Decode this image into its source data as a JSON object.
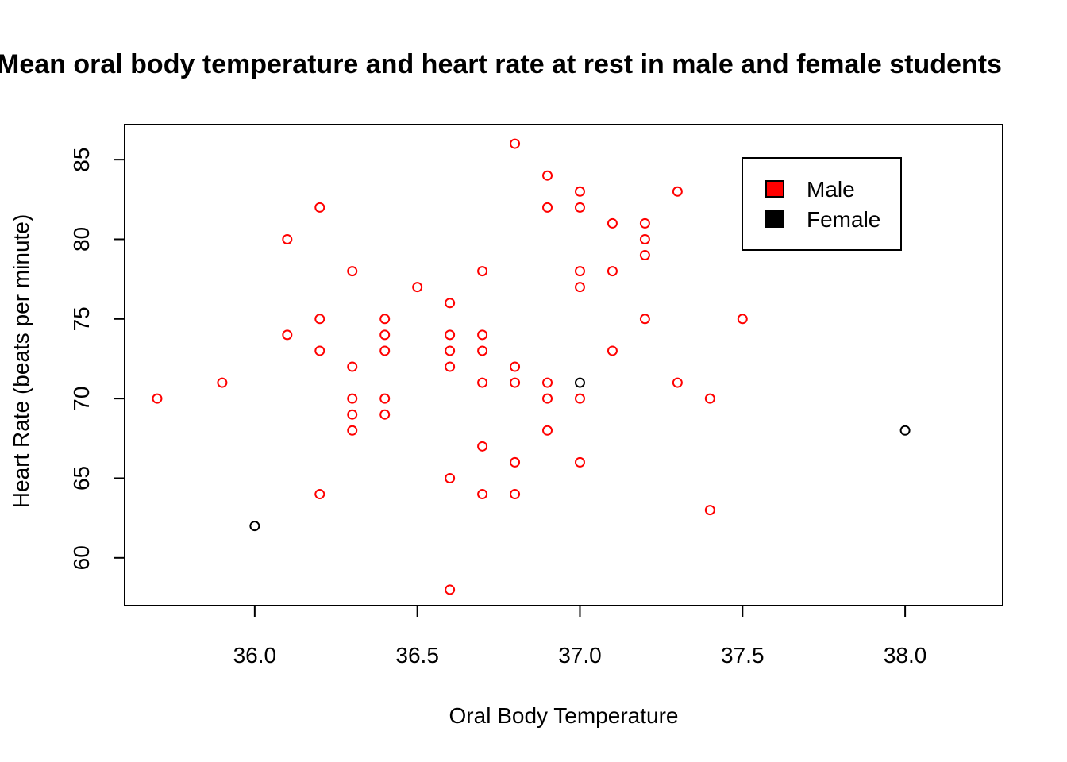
{
  "chart_data": {
    "type": "scatter",
    "title": "Mean oral body temperature  and heart rate at rest in male and female students",
    "xlabel": "Oral Body Temperature",
    "ylabel": "Heart Rate (beats per minute)",
    "xlim": [
      35.6,
      38.3
    ],
    "ylim": [
      57,
      87.2
    ],
    "x_ticks": [
      36.0,
      36.5,
      37.0,
      37.5,
      38.0
    ],
    "x_tick_labels": [
      "36.0",
      "36.5",
      "37.0",
      "37.5",
      "38.0"
    ],
    "y_ticks": [
      60,
      65,
      70,
      75,
      80,
      85
    ],
    "y_tick_labels": [
      "60",
      "65",
      "70",
      "75",
      "80",
      "85"
    ],
    "grid": false,
    "legend_position": "top-right",
    "series": [
      {
        "name": "Male",
        "color": "#ff0000",
        "points": [
          [
            35.7,
            70
          ],
          [
            35.9,
            71
          ],
          [
            36.1,
            80
          ],
          [
            36.1,
            74
          ],
          [
            36.2,
            82
          ],
          [
            36.2,
            75
          ],
          [
            36.2,
            73
          ],
          [
            36.2,
            64
          ],
          [
            36.3,
            78
          ],
          [
            36.3,
            72
          ],
          [
            36.3,
            70
          ],
          [
            36.3,
            69
          ],
          [
            36.3,
            68
          ],
          [
            36.4,
            75
          ],
          [
            36.4,
            74
          ],
          [
            36.4,
            73
          ],
          [
            36.4,
            70
          ],
          [
            36.4,
            69
          ],
          [
            36.5,
            77
          ],
          [
            36.6,
            76
          ],
          [
            36.6,
            74
          ],
          [
            36.6,
            73
          ],
          [
            36.6,
            72
          ],
          [
            36.6,
            65
          ],
          [
            36.6,
            58
          ],
          [
            36.7,
            78
          ],
          [
            36.7,
            74
          ],
          [
            36.7,
            73
          ],
          [
            36.7,
            71
          ],
          [
            36.7,
            67
          ],
          [
            36.7,
            64
          ],
          [
            36.8,
            86
          ],
          [
            36.8,
            72
          ],
          [
            36.8,
            71
          ],
          [
            36.8,
            66
          ],
          [
            36.8,
            64
          ],
          [
            36.9,
            84
          ],
          [
            36.9,
            82
          ],
          [
            36.9,
            71
          ],
          [
            36.9,
            70
          ],
          [
            36.9,
            68
          ],
          [
            37.0,
            83
          ],
          [
            37.0,
            82
          ],
          [
            37.0,
            78
          ],
          [
            37.0,
            77
          ],
          [
            37.0,
            70
          ],
          [
            37.0,
            66
          ],
          [
            37.1,
            81
          ],
          [
            37.1,
            78
          ],
          [
            37.1,
            73
          ],
          [
            37.2,
            81
          ],
          [
            37.2,
            80
          ],
          [
            37.2,
            79
          ],
          [
            37.2,
            75
          ],
          [
            37.3,
            83
          ],
          [
            37.3,
            71
          ],
          [
            37.4,
            70
          ],
          [
            37.4,
            63
          ],
          [
            37.5,
            75
          ]
        ]
      },
      {
        "name": "Female",
        "color": "#000000",
        "points": [
          [
            36.0,
            62
          ],
          [
            37.0,
            71
          ],
          [
            38.0,
            68
          ]
        ]
      }
    ]
  }
}
